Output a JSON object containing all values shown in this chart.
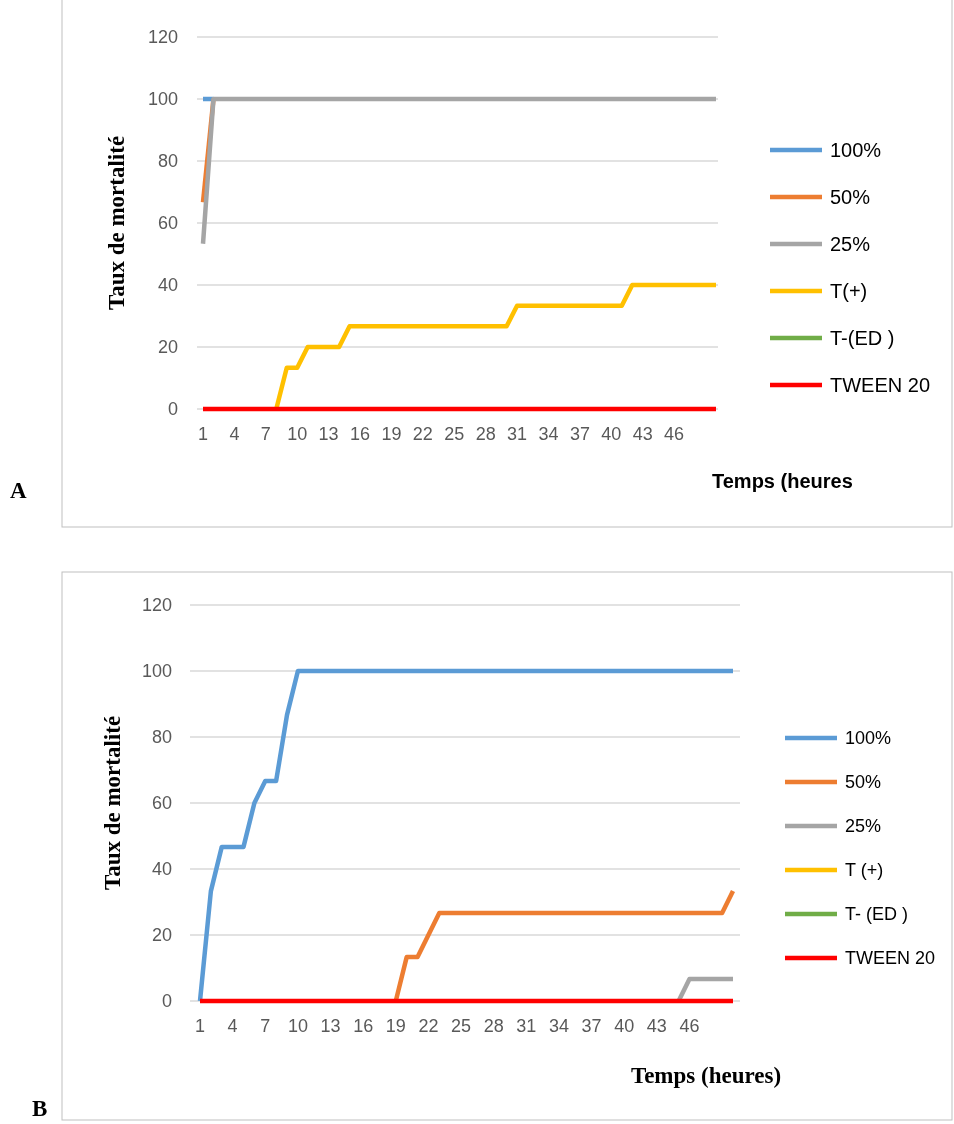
{
  "chart_data": [
    {
      "type": "line",
      "ylabel": "Taux de mortalité",
      "xlabel": "Temps (heures",
      "annotations": [
        "A"
      ],
      "ylim": [
        0,
        120
      ],
      "yticks": [
        0,
        20,
        40,
        60,
        80,
        100,
        120
      ],
      "grid": "y",
      "legend": "right",
      "categories": [
        "1",
        null,
        null,
        "4",
        null,
        null,
        "7",
        null,
        null,
        "10",
        null,
        null,
        "13",
        null,
        null,
        "16",
        null,
        null,
        "19",
        null,
        null,
        "22",
        null,
        null,
        "25",
        null,
        null,
        "28",
        null,
        null,
        "31",
        null,
        null,
        "34",
        null,
        null,
        "37",
        null,
        null,
        "40",
        null,
        null,
        "43",
        null,
        null,
        "46",
        null,
        null,
        null,
        null
      ],
      "series": [
        {
          "name": "100%",
          "color": "#5b9bd5",
          "values": [
            100,
            100,
            null,
            null,
            null,
            null,
            null,
            null,
            null,
            null,
            null,
            null,
            null,
            null,
            null,
            null,
            null,
            null,
            null,
            null,
            null,
            null,
            null,
            null,
            null,
            null,
            null,
            null,
            null,
            null,
            null,
            null,
            null,
            null,
            null,
            null,
            null,
            null,
            null,
            null,
            null,
            null,
            null,
            null,
            null,
            null,
            null,
            null,
            null,
            null
          ]
        },
        {
          "name": "50%",
          "color": "#ed7d31",
          "values": [
            66.7,
            100,
            null,
            null,
            null,
            null,
            null,
            null,
            null,
            null,
            null,
            null,
            null,
            null,
            null,
            null,
            null,
            null,
            null,
            null,
            null,
            null,
            null,
            null,
            null,
            null,
            null,
            null,
            null,
            null,
            null,
            null,
            null,
            null,
            null,
            null,
            null,
            null,
            null,
            null,
            null,
            null,
            null,
            null,
            null,
            null,
            null,
            null,
            null,
            null
          ]
        },
        {
          "name": "25%",
          "color": "#a5a5a5",
          "values": [
            53.3,
            100,
            100,
            100,
            100,
            100,
            100,
            100,
            100,
            100,
            100,
            100,
            100,
            100,
            100,
            100,
            100,
            100,
            100,
            100,
            100,
            100,
            100,
            100,
            100,
            100,
            100,
            100,
            100,
            100,
            100,
            100,
            100,
            100,
            100,
            100,
            100,
            100,
            100,
            100,
            100,
            100,
            100,
            100,
            100,
            100,
            100,
            100,
            100,
            100
          ]
        },
        {
          "name": "T(+)",
          "color": "#ffc000",
          "values": [
            null,
            null,
            null,
            null,
            null,
            null,
            null,
            0,
            13.3,
            13.3,
            20,
            20,
            20,
            20,
            26.7,
            26.7,
            26.7,
            26.7,
            26.7,
            26.7,
            26.7,
            26.7,
            26.7,
            26.7,
            26.7,
            26.7,
            26.7,
            26.7,
            26.7,
            26.7,
            33.3,
            33.3,
            33.3,
            33.3,
            33.3,
            33.3,
            33.3,
            33.3,
            33.3,
            33.3,
            33.3,
            40,
            40,
            40,
            40,
            40,
            40,
            40,
            40,
            40
          ]
        },
        {
          "name": "T-(ED )",
          "color": "#70ad47",
          "values": [
            null,
            null,
            null,
            null,
            null,
            null,
            null,
            null,
            null,
            null,
            null,
            null,
            null,
            null,
            null,
            null,
            null,
            null,
            null,
            null,
            null,
            null,
            null,
            null,
            null,
            null,
            null,
            null,
            null,
            null,
            null,
            null,
            null,
            null,
            null,
            null,
            null,
            null,
            null,
            null,
            null,
            null,
            null,
            null,
            null,
            null,
            null,
            null,
            null,
            null
          ]
        },
        {
          "name": "TWEEN 20",
          "color": "#ff0000",
          "values": [
            0,
            0,
            0,
            0,
            0,
            0,
            0,
            0,
            0,
            0,
            0,
            0,
            0,
            0,
            0,
            0,
            0,
            0,
            0,
            0,
            0,
            0,
            0,
            0,
            0,
            0,
            0,
            0,
            0,
            0,
            0,
            0,
            0,
            0,
            0,
            0,
            0,
            0,
            0,
            0,
            0,
            0,
            0,
            0,
            0,
            0,
            0,
            0,
            0,
            0
          ]
        }
      ]
    },
    {
      "type": "line",
      "ylabel": "Taux de mortalité",
      "xlabel": "Temps (heures)",
      "annotations": [
        "B"
      ],
      "ylim": [
        0,
        120
      ],
      "yticks": [
        0,
        20,
        40,
        60,
        80,
        100,
        120
      ],
      "grid": "y",
      "legend": "right",
      "categories": [
        "1",
        null,
        null,
        "4",
        null,
        null,
        "7",
        null,
        null,
        "10",
        null,
        null,
        "13",
        null,
        null,
        "16",
        null,
        null,
        "19",
        null,
        null,
        "22",
        null,
        null,
        "25",
        null,
        null,
        "28",
        null,
        null,
        "31",
        null,
        null,
        "34",
        null,
        null,
        "37",
        null,
        null,
        "40",
        null,
        null,
        "43",
        null,
        null,
        "46",
        null,
        null,
        null,
        null
      ],
      "series": [
        {
          "name": "100%",
          "color": "#5b9bd5",
          "values": [
            0,
            33.3,
            46.7,
            46.7,
            46.7,
            60,
            66.7,
            66.7,
            86.7,
            100,
            100,
            100,
            100,
            100,
            100,
            100,
            100,
            100,
            100,
            100,
            100,
            100,
            100,
            100,
            100,
            100,
            100,
            100,
            100,
            100,
            100,
            100,
            100,
            100,
            100,
            100,
            100,
            100,
            100,
            100,
            100,
            100,
            100,
            100,
            100,
            100,
            100,
            100,
            100,
            100
          ]
        },
        {
          "name": "50%",
          "color": "#ed7d31",
          "values": [
            null,
            null,
            null,
            null,
            null,
            null,
            null,
            null,
            null,
            null,
            null,
            null,
            null,
            null,
            null,
            null,
            null,
            null,
            0,
            13.3,
            13.3,
            20,
            26.7,
            26.7,
            26.7,
            26.7,
            26.7,
            26.7,
            26.7,
            26.7,
            26.7,
            26.7,
            26.7,
            26.7,
            26.7,
            26.7,
            26.7,
            26.7,
            26.7,
            26.7,
            26.7,
            26.7,
            26.7,
            26.7,
            26.7,
            26.7,
            26.7,
            26.7,
            26.7,
            33.3
          ]
        },
        {
          "name": "25%",
          "color": "#a5a5a5",
          "values": [
            null,
            null,
            null,
            null,
            null,
            null,
            null,
            null,
            null,
            null,
            null,
            null,
            null,
            null,
            null,
            null,
            null,
            null,
            null,
            null,
            null,
            null,
            null,
            null,
            null,
            null,
            null,
            null,
            null,
            null,
            null,
            null,
            null,
            null,
            null,
            null,
            null,
            null,
            null,
            null,
            null,
            null,
            null,
            null,
            0,
            6.7,
            6.7,
            6.7,
            6.7,
            6.7
          ]
        },
        {
          "name": "T (+)",
          "color": "#ffc000",
          "values": [
            null,
            null,
            null,
            null,
            null,
            null,
            null,
            null,
            null,
            null,
            null,
            null,
            null,
            null,
            null,
            null,
            null,
            null,
            null,
            null,
            null,
            null,
            null,
            null,
            null,
            null,
            null,
            null,
            null,
            null,
            null,
            null,
            null,
            null,
            null,
            null,
            null,
            null,
            null,
            null,
            null,
            null,
            null,
            null,
            null,
            null,
            null,
            null,
            null,
            null
          ]
        },
        {
          "name": "T- (ED )",
          "color": "#70ad47",
          "values": [
            null,
            null,
            null,
            null,
            null,
            null,
            null,
            null,
            null,
            null,
            null,
            null,
            null,
            null,
            null,
            null,
            null,
            null,
            null,
            null,
            null,
            null,
            null,
            null,
            null,
            null,
            null,
            null,
            null,
            null,
            null,
            null,
            null,
            null,
            null,
            null,
            null,
            null,
            null,
            null,
            null,
            null,
            null,
            null,
            null,
            null,
            null,
            null,
            null,
            null
          ]
        },
        {
          "name": "TWEEN 20",
          "color": "#ff0000",
          "values": [
            0,
            0,
            0,
            0,
            0,
            0,
            0,
            0,
            0,
            0,
            0,
            0,
            0,
            0,
            0,
            0,
            0,
            0,
            0,
            0,
            0,
            0,
            0,
            0,
            0,
            0,
            0,
            0,
            0,
            0,
            0,
            0,
            0,
            0,
            0,
            0,
            0,
            0,
            0,
            0,
            0,
            0,
            0,
            0,
            0,
            0,
            0,
            0,
            0,
            0
          ]
        }
      ]
    }
  ]
}
